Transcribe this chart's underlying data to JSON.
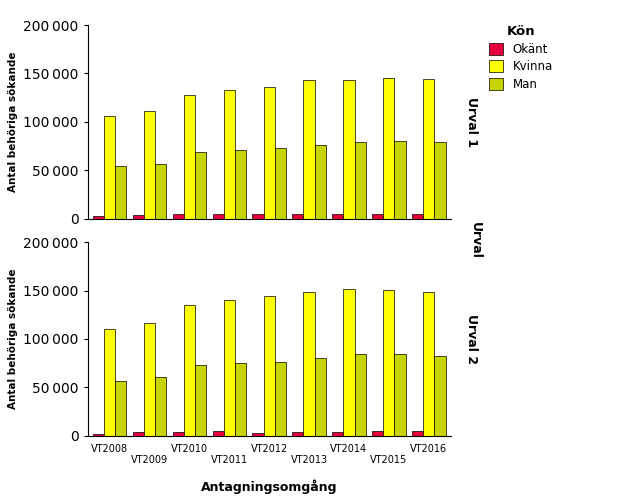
{
  "years": [
    "VT2008",
    "VT2009",
    "VT2010",
    "VT2011",
    "VT2012",
    "VT2013",
    "VT2014",
    "VT2015",
    "VT2016"
  ],
  "urval1": {
    "okant": [
      3000,
      4000,
      4500,
      5500,
      4500,
      4500,
      5000,
      5500,
      5500
    ],
    "kvinna": [
      106000,
      111000,
      128000,
      133000,
      136000,
      143000,
      143000,
      145000,
      144000
    ],
    "man": [
      55000,
      57000,
      69000,
      71000,
      73000,
      76000,
      79000,
      80000,
      79000
    ]
  },
  "urval2": {
    "okant": [
      2000,
      3500,
      4000,
      5500,
      3000,
      4000,
      4500,
      5000,
      5500
    ],
    "kvinna": [
      110000,
      117000,
      135000,
      140000,
      144000,
      149000,
      152000,
      151000,
      149000
    ],
    "man": [
      57000,
      61000,
      73000,
      75000,
      76000,
      80000,
      84000,
      84000,
      82000
    ]
  },
  "color_okant": "#e8003d",
  "color_kvinna": "#ffff00",
  "color_man": "#c8d400",
  "bar_edgecolor": "#000000",
  "ylabel": "Antal behöriga sökande",
  "xlabel": "Antagningsomgång",
  "urval1_label": "Urval 1",
  "urval2_label": "Urval 2",
  "urval_label": "Urval",
  "legend_title": "Kön",
  "legend_okant": "Okänt",
  "legend_kvinna": "Kvinna",
  "legend_man": "Man",
  "ylim": [
    0,
    200000
  ],
  "yticks": [
    0,
    50000,
    100000,
    150000,
    200000
  ],
  "background_color": "#ffffff"
}
